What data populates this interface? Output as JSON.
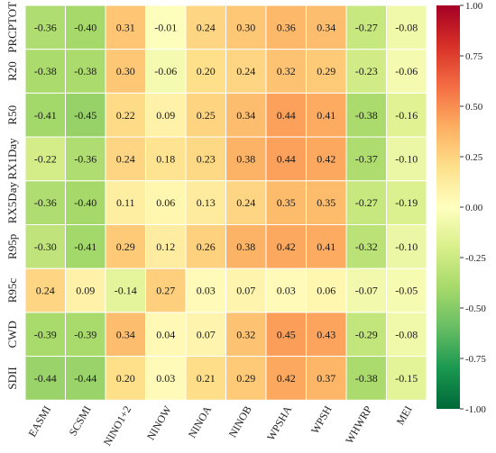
{
  "chart_data": {
    "type": "heatmap",
    "title": "",
    "xlabel": "",
    "ylabel": "",
    "columns": [
      "EASMI",
      "SCSMI",
      "NINO1+2",
      "NINOW",
      "NINOA",
      "NINOB",
      "WPSHA",
      "WPSH",
      "WHWRP",
      "MEI"
    ],
    "rows": [
      "PRCPTOT",
      "R20",
      "R50",
      "RX1Day",
      "RX5Day",
      "R95p",
      "R95c",
      "CWD",
      "SDII"
    ],
    "values": [
      [
        -0.36,
        -0.4,
        0.31,
        -0.01,
        0.24,
        0.3,
        0.36,
        0.34,
        -0.27,
        -0.08
      ],
      [
        -0.38,
        -0.38,
        0.3,
        -0.06,
        0.2,
        0.24,
        0.32,
        0.29,
        -0.23,
        -0.06
      ],
      [
        -0.41,
        -0.45,
        0.22,
        0.09,
        0.25,
        0.34,
        0.44,
        0.41,
        -0.38,
        -0.16
      ],
      [
        -0.22,
        -0.36,
        0.24,
        0.18,
        0.23,
        0.38,
        0.44,
        0.42,
        -0.37,
        -0.1
      ],
      [
        -0.36,
        -0.4,
        0.11,
        0.06,
        0.13,
        0.24,
        0.35,
        0.35,
        -0.27,
        -0.19
      ],
      [
        -0.3,
        -0.41,
        0.29,
        0.12,
        0.26,
        0.38,
        0.42,
        0.41,
        -0.32,
        -0.1
      ],
      [
        0.24,
        0.09,
        -0.14,
        0.27,
        0.03,
        0.07,
        0.03,
        0.06,
        -0.07,
        -0.05
      ],
      [
        -0.39,
        -0.39,
        0.34,
        0.04,
        0.07,
        0.32,
        0.45,
        0.43,
        -0.29,
        -0.08
      ],
      [
        -0.44,
        -0.44,
        0.2,
        0.03,
        0.21,
        0.29,
        0.42,
        0.37,
        -0.38,
        -0.15
      ]
    ],
    "colorbar": {
      "colormap": "RdYlGn_r",
      "vmin": -1.0,
      "vmax": 1.0,
      "ticks": [
        "1.00",
        "0.75",
        "0.50",
        "0.25",
        "0.00",
        "-0.25",
        "-0.50",
        "-0.75",
        "-1.00"
      ]
    },
    "grid": false,
    "cell_border_color": "#ffffff"
  }
}
